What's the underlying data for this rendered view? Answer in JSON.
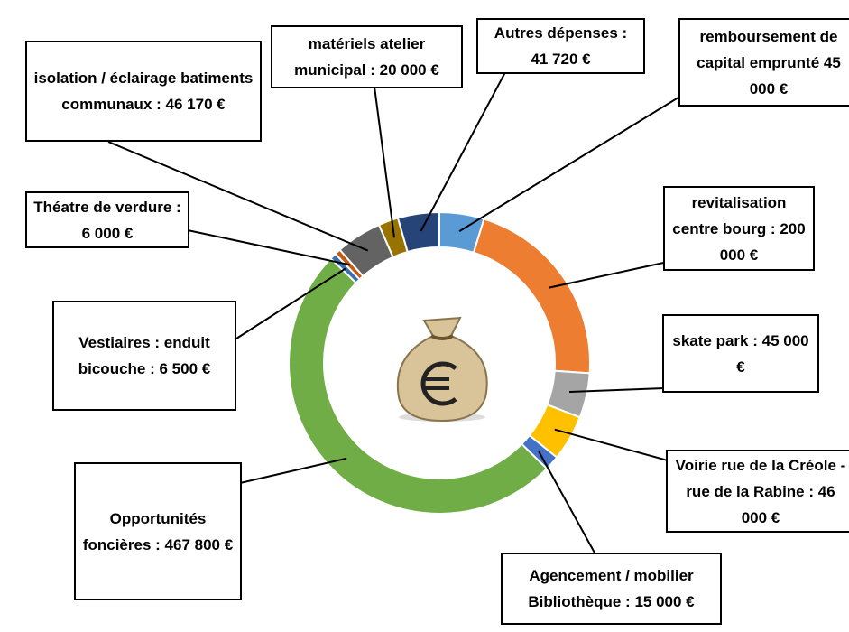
{
  "chart_data": {
    "type": "donut",
    "categories": [
      "remboursement de capital emprunté",
      "revitalisation centre bourg :",
      "skate park :",
      "Voirie rue de la Créole - rue de la Rabine :",
      "Agencement / mobilier Bibliothèque :",
      "Opportunités foncières :",
      "Vestiaires : enduit bicouche :",
      "Théatre de verdure :",
      "isolation / éclairage batiments communaux :",
      "matériels atelier municipal :",
      "Autres dépenses :"
    ],
    "values": [
      45000,
      200000,
      45000,
      46000,
      15000,
      467800,
      6500,
      6000,
      46170,
      20000,
      41720
    ],
    "value_labels": [
      "45 000 €",
      "200 000 €",
      "45 000 €",
      "46 000 €",
      "15 000 €",
      "467 800 €",
      "6 500 €",
      "6 000 €",
      "46 170 €",
      "20 000 €",
      "41 720 €"
    ],
    "colors": [
      "#5b9bd5",
      "#ed7d31",
      "#a5a5a5",
      "#ffc000",
      "#4472c4",
      "#70ad47",
      "#3a6fb0",
      "#c55a11",
      "#636363",
      "#997300",
      "#264478"
    ]
  }
}
